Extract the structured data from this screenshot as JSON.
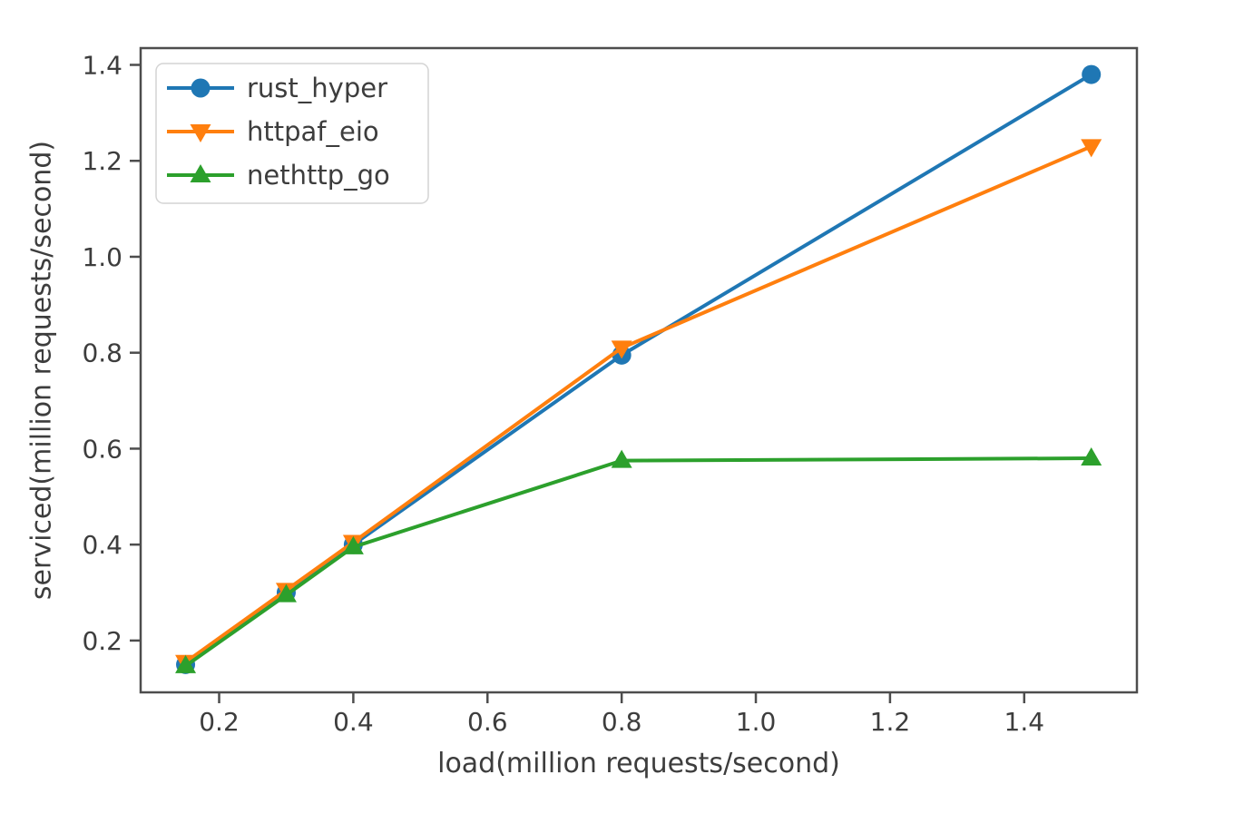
{
  "chart_data": {
    "type": "line",
    "title": "",
    "xlabel": "load(million requests/second)",
    "ylabel": "serviced(million requests/second)",
    "x": [
      0.15,
      0.3,
      0.4,
      0.8,
      1.5
    ],
    "series": [
      {
        "name": "rust_hyper",
        "color": "#1f77b4",
        "marker": "circle",
        "values": [
          0.15,
          0.3,
          0.4,
          0.795,
          1.38
        ]
      },
      {
        "name": "httpaf_eio",
        "color": "#ff7f0e",
        "marker": "triangle-down",
        "values": [
          0.155,
          0.305,
          0.405,
          0.81,
          1.23
        ]
      },
      {
        "name": "nethttp_go",
        "color": "#2ca02c",
        "marker": "triangle-up",
        "values": [
          0.147,
          0.295,
          0.395,
          0.575,
          0.58
        ]
      }
    ],
    "xticks": [
      0.2,
      0.4,
      0.6,
      0.8,
      1.0,
      1.2,
      1.4
    ],
    "yticks": [
      0.2,
      0.4,
      0.6,
      0.8,
      1.0,
      1.2,
      1.4
    ],
    "tick_format_decimals": 1,
    "xlim": [
      0.083,
      1.568
    ],
    "ylim": [
      0.092,
      1.435
    ],
    "grid": false,
    "legend_position": "upper-left",
    "colors": {
      "background": "#ffffff",
      "text": "#3d3d3d",
      "spine": "#4d4d4d",
      "legend_border": "#d4d4d4",
      "legend_background": "#ffffff"
    }
  }
}
